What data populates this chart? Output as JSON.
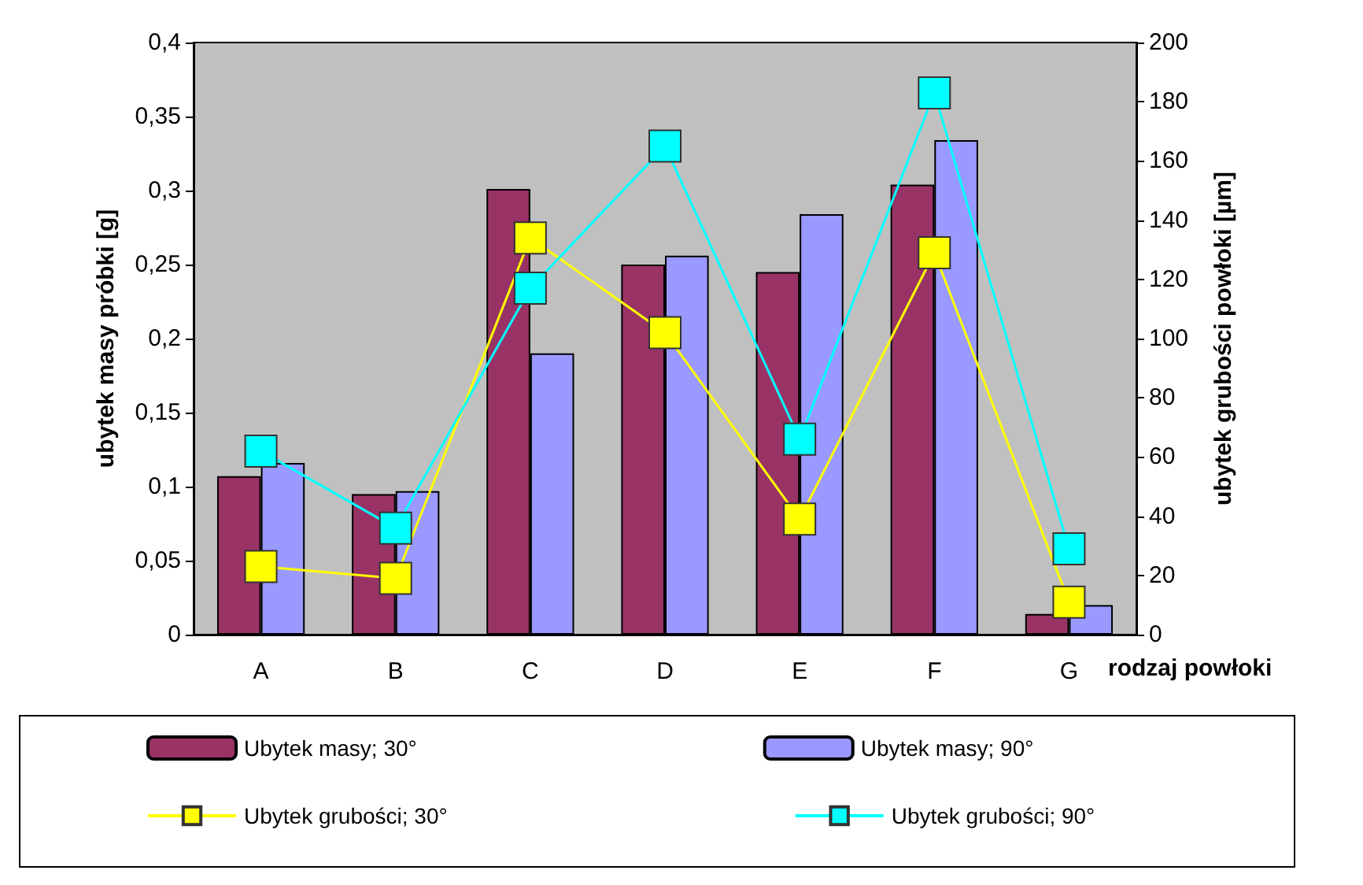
{
  "chart_data": {
    "type": "bar",
    "xlabel": "rodzaj powłoki",
    "ylabel": "ubytek masy próbki [g]",
    "y2label": "ubytek grubości powłoki [µm]",
    "categories": [
      "A",
      "B",
      "C",
      "D",
      "E",
      "F",
      "G"
    ],
    "series": [
      {
        "name": "Ubytek masy; 30°",
        "color": "#993366",
        "values": [
          0.107,
          0.095,
          0.301,
          0.25,
          0.245,
          0.304,
          0.014
        ]
      },
      {
        "name": "Ubytek masy; 90°",
        "color": "#9999ff",
        "values": [
          0.116,
          0.097,
          0.19,
          0.256,
          0.284,
          0.334,
          0.02
        ]
      },
      {
        "name": "Ubytek grubości; 30°",
        "type": "line",
        "axis": "y2",
        "color": "#ffff00",
        "values": [
          23,
          19,
          134,
          102,
          39,
          129,
          11
        ]
      },
      {
        "name": "Ubytek grubości; 90°",
        "type": "line",
        "axis": "y2",
        "color": "#00ffff",
        "values": [
          62,
          36,
          117,
          165,
          66,
          183,
          29
        ]
      }
    ],
    "ylim": [
      0,
      0.4
    ],
    "yticks": [
      0,
      {
        "value": 0.05,
        "label": "0,05"
      },
      {
        "value": 0.1,
        "label": "0,1"
      },
      {
        "value": 0.15,
        "label": "0,15"
      },
      {
        "value": 0.2,
        "label": "0,2"
      },
      {
        "value": 0.25,
        "label": "0,25"
      },
      {
        "value": 0.3,
        "label": "0,3"
      },
      {
        "value": 0.35,
        "label": "0,35"
      },
      {
        "value": 0.4,
        "label": "0,4"
      }
    ],
    "y2lim": [
      0,
      200
    ],
    "y2ticks": [
      0,
      20,
      40,
      60,
      80,
      100,
      120,
      140,
      160,
      180,
      200
    ],
    "marker": "square",
    "grid": false,
    "legend": "bottom"
  }
}
